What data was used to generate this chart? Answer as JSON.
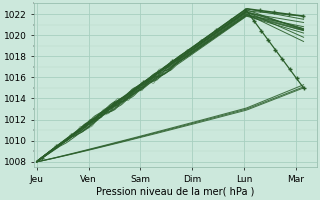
{
  "background_color": "#cce8dc",
  "grid_color_major": "#a8cfc0",
  "grid_color_minor": "#b8d8ca",
  "line_color": "#2a5e2a",
  "ylabel": "Pression niveau de la mer( hPa )",
  "ylim": [
    1007.5,
    1023.0
  ],
  "yticks": [
    1008,
    1010,
    1012,
    1014,
    1016,
    1018,
    1020,
    1022
  ],
  "xlabels": [
    "Jeu",
    "Ven",
    "Sam",
    "Dim",
    "Lun",
    "Mar"
  ],
  "xtick_pos": [
    0,
    1,
    2,
    3,
    4,
    5
  ],
  "xlim": [
    -0.05,
    5.4
  ],
  "figsize": [
    3.2,
    2.0
  ],
  "dpi": 100
}
